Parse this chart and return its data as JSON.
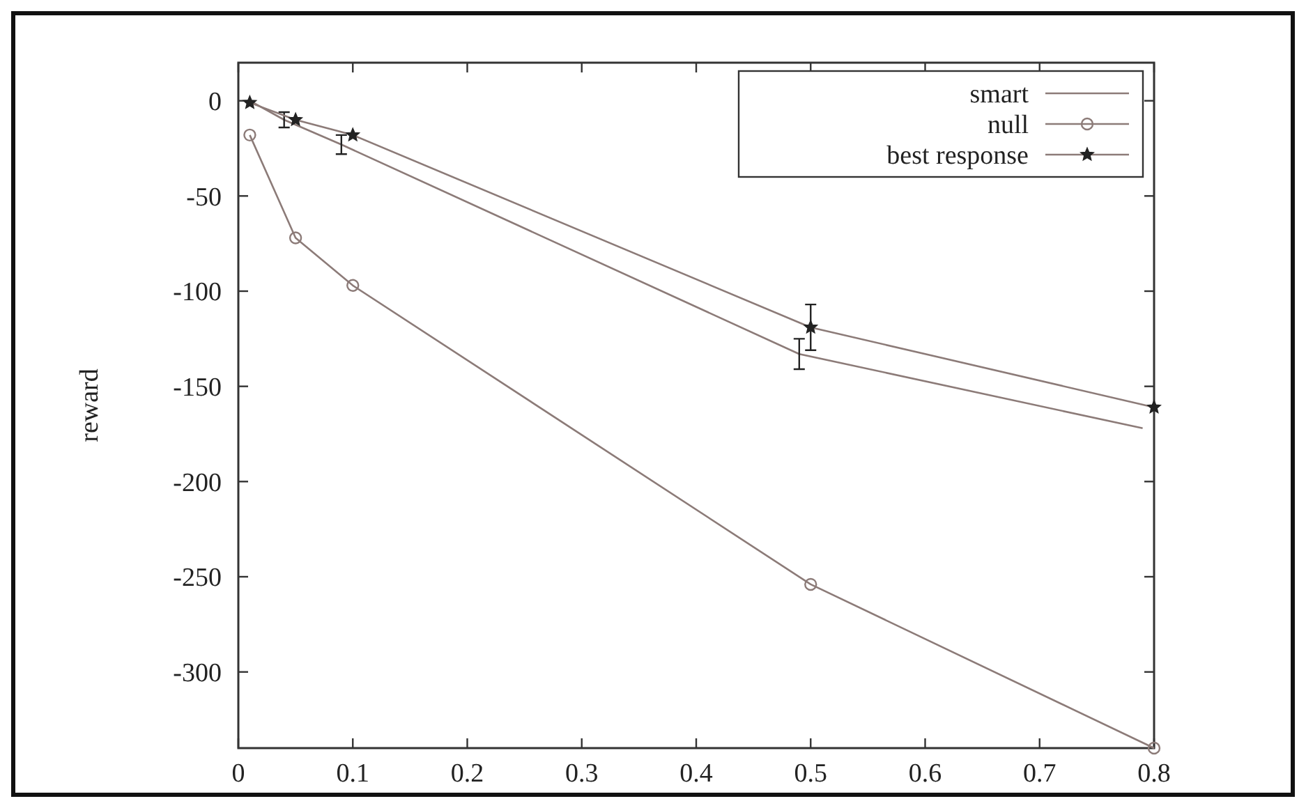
{
  "chart_data": {
    "type": "line",
    "ylabel": "reward",
    "xlim": [
      0,
      0.8
    ],
    "xticks": [
      0,
      0.1,
      0.2,
      0.3,
      0.4,
      0.5,
      0.6,
      0.7,
      0.8
    ],
    "ylim": [
      -340,
      20
    ],
    "yticks": [
      0,
      -50,
      -100,
      -150,
      -200,
      -250,
      -300
    ],
    "grid": false,
    "legend": "top right",
    "series": [
      {
        "name": "smart",
        "color": "#8c7b78",
        "marker": "none",
        "x": [
          0.01,
          0.04,
          0.09,
          0.49,
          0.79
        ],
        "values": [
          0,
          -10,
          -23,
          -133,
          -172
        ],
        "errors": [
          null,
          4,
          5,
          8,
          null
        ]
      },
      {
        "name": "null",
        "color": "#8c7b78",
        "marker": "circle",
        "x": [
          0.01,
          0.05,
          0.1,
          0.5,
          0.8
        ],
        "values": [
          -18,
          -72,
          -97,
          -254,
          -340
        ]
      },
      {
        "name": "best response",
        "color": "#8c7b78",
        "marker": "star",
        "x": [
          0.01,
          0.05,
          0.1,
          0.5,
          0.8
        ],
        "values": [
          -1,
          -10,
          -18,
          -119,
          -161
        ],
        "errors": [
          null,
          null,
          null,
          12,
          null
        ]
      }
    ]
  }
}
